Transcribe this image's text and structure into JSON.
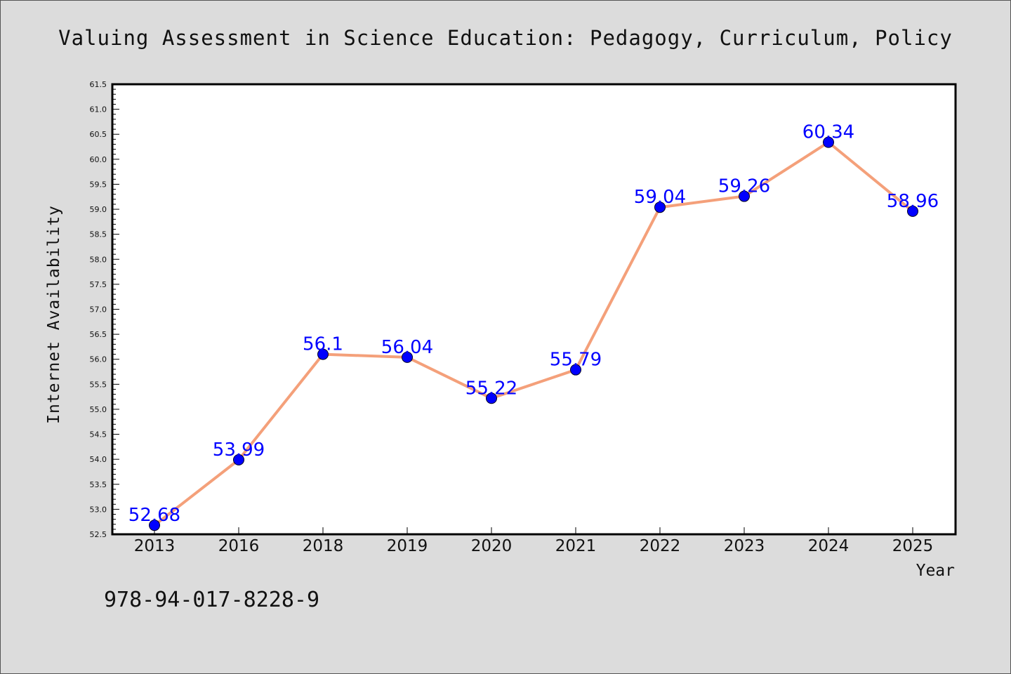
{
  "chart_data": {
    "type": "line",
    "title": "Valuing Assessment in Science Education: Pedagogy, Curriculum, Policy",
    "xlabel": "Year",
    "ylabel": "Internet Availability",
    "categories": [
      "2013",
      "2016",
      "2018",
      "2019",
      "2020",
      "2021",
      "2022",
      "2023",
      "2024",
      "2025"
    ],
    "values": [
      52.68,
      53.99,
      56.1,
      56.04,
      55.22,
      55.79,
      59.04,
      59.26,
      60.34,
      58.96
    ],
    "data_labels": [
      "52.68",
      "53.99",
      "56.1",
      "56.04",
      "55.22",
      "55.79",
      "59.04",
      "59.26",
      "60.34",
      "58.96"
    ],
    "ylim": [
      52.5,
      61.5
    ],
    "yticks": [
      "52.5",
      "53.0",
      "53.5",
      "54.0",
      "54.5",
      "55.0",
      "55.5",
      "56.0",
      "56.5",
      "57.0",
      "57.5",
      "58.0",
      "58.5",
      "59.0",
      "59.5",
      "60.0",
      "60.5",
      "61.0",
      "61.5"
    ],
    "grid": false,
    "line_color": "#f4a07a",
    "marker_color": "#0000ff",
    "label_color": "#0000ff"
  },
  "footer_text": "978-94-017-8228-9"
}
